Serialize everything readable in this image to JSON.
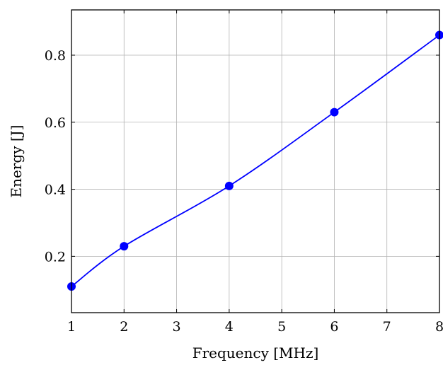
{
  "chart_data": {
    "type": "line",
    "title": "",
    "xlabel": "Frequency [MHz]",
    "ylabel": "Energy [J]",
    "xlim": [
      1,
      8
    ],
    "ylim": [
      0.032,
      0.935
    ],
    "grid": true,
    "x_ticks": [
      1,
      2,
      3,
      4,
      5,
      6,
      7,
      8
    ],
    "x_tick_labels": [
      "1",
      "2",
      "3",
      "4",
      "5",
      "6",
      "7",
      "8"
    ],
    "y_ticks": [
      0.2,
      0.4,
      0.6,
      0.8
    ],
    "y_tick_labels": [
      "0.2",
      "0.4",
      "0.6",
      "0.8"
    ],
    "series": [
      {
        "color": "#0000ff",
        "marker": "circle",
        "smooth": true,
        "x": [
          1,
          2,
          4,
          6,
          8
        ],
        "y": [
          0.11,
          0.23,
          0.41,
          0.63,
          0.86
        ]
      }
    ]
  }
}
